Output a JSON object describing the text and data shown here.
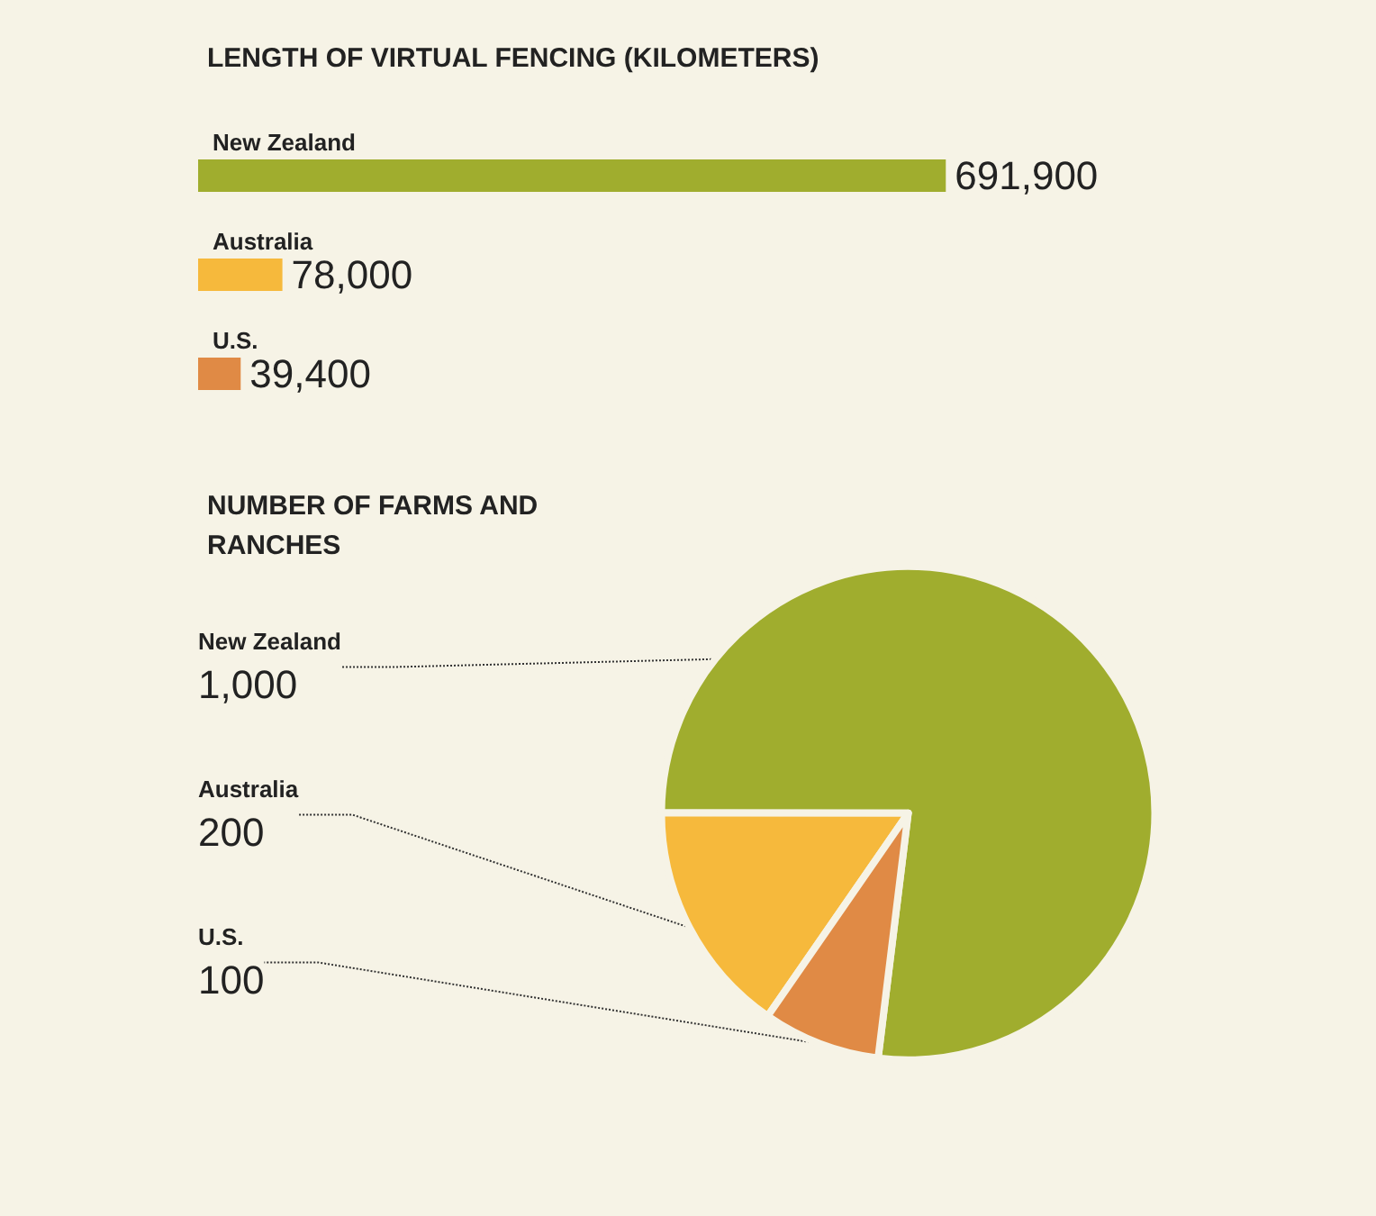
{
  "chart_data": [
    {
      "type": "bar",
      "orientation": "horizontal",
      "title": "LENGTH OF VIRTUAL FENCING (KILOMETERS)",
      "categories": [
        "New Zealand",
        "Australia",
        "U.S."
      ],
      "values": [
        691900,
        78000,
        39400
      ],
      "colors": [
        "#a0ad2e",
        "#f6b93c",
        "#e08a45"
      ],
      "value_labels": [
        "691,900",
        "78,000",
        "39,400"
      ]
    },
    {
      "type": "pie",
      "title": "NUMBER OF FARMS AND RANCHES",
      "categories": [
        "New Zealand",
        "Australia",
        "U.S."
      ],
      "values": [
        1000,
        200,
        100
      ],
      "colors": [
        "#a0ad2e",
        "#f6b93c",
        "#e08a45"
      ],
      "value_labels": [
        "1,000",
        "200",
        "100"
      ]
    }
  ]
}
